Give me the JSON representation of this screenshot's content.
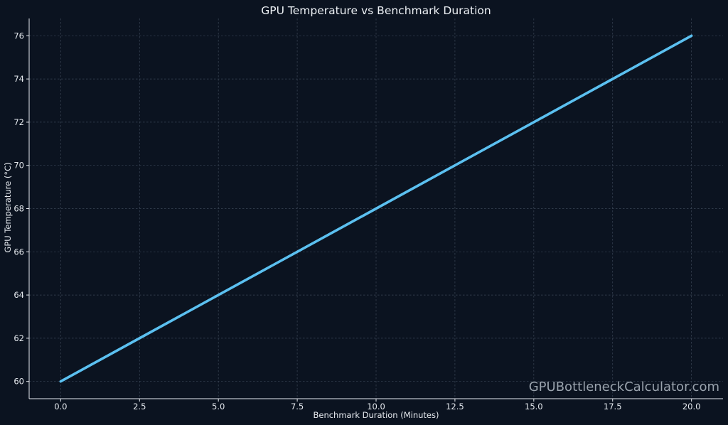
{
  "chart_data": {
    "type": "line",
    "title": "GPU Temperature vs Benchmark Duration",
    "xlabel": "Benchmark Duration (Minutes)",
    "ylabel": "GPU Temperature (°C)",
    "x": [
      0,
      2.5,
      5,
      7.5,
      10,
      12.5,
      15,
      17.5,
      20
    ],
    "series": [
      {
        "values": [
          60,
          62,
          64,
          66,
          68,
          70,
          72,
          74,
          76
        ],
        "color": "#5bc0f0"
      }
    ],
    "xlim": [
      -1,
      21
    ],
    "ylim": [
      59.2,
      76.8
    ],
    "xticks": [
      "0.0",
      "2.5",
      "5.0",
      "7.5",
      "10.0",
      "12.5",
      "15.0",
      "17.5",
      "20.0"
    ],
    "yticks": [
      "60",
      "62",
      "64",
      "66",
      "68",
      "70",
      "72",
      "74",
      "76"
    ],
    "grid": true,
    "background": "#0b1320",
    "text_color": "#e6eaef"
  },
  "watermark": "GPUBottleneckCalculator.com"
}
